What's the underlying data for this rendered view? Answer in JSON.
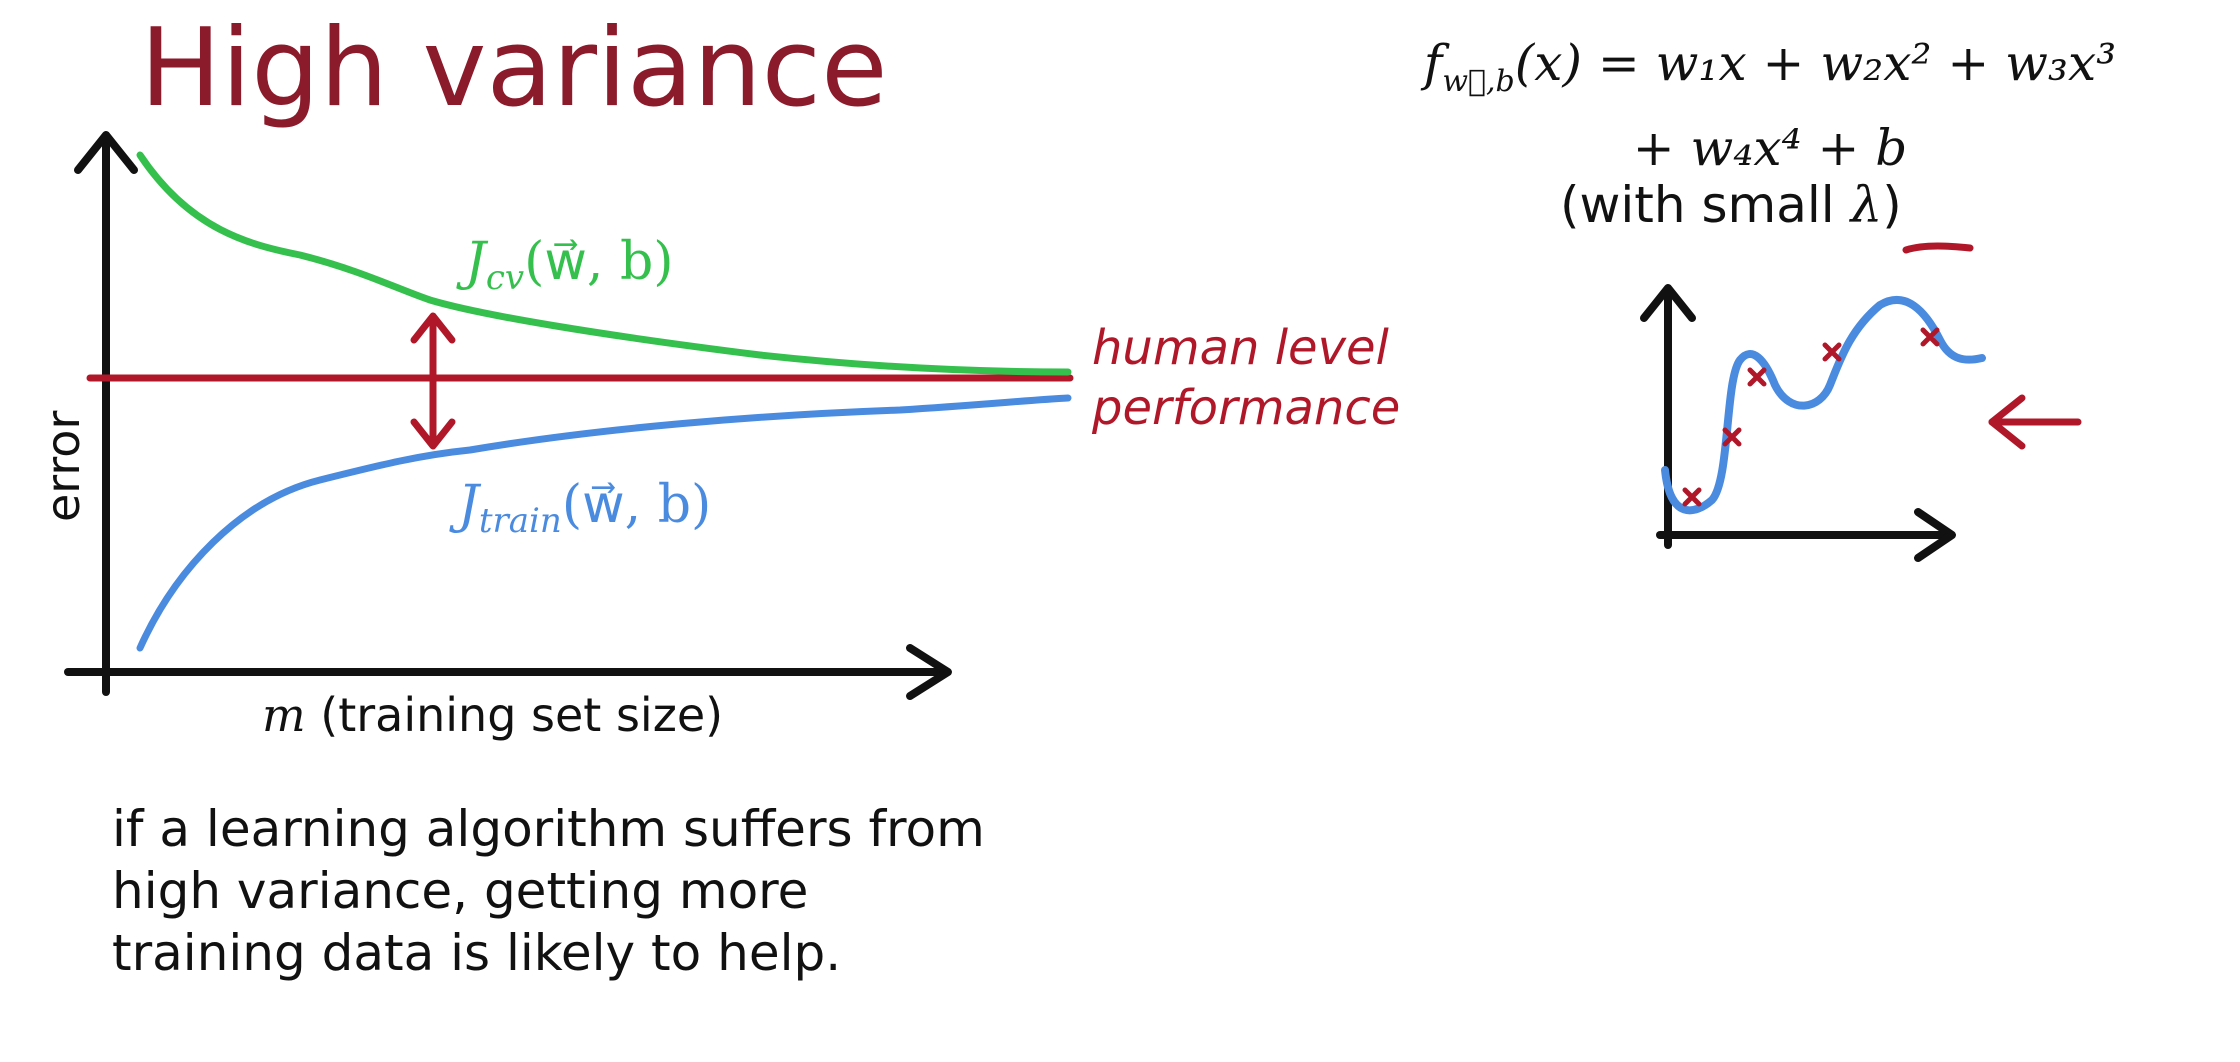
{
  "title": "High variance",
  "learning_curve": {
    "y_axis_label": "error",
    "x_axis_label_var": "m",
    "x_axis_label_text": " (training set size)",
    "cv_curve_label": {
      "prefix": "J",
      "sub": "cv",
      "args": "(w⃗, b)",
      "color": "#35c04d"
    },
    "train_curve_label": {
      "prefix": "J",
      "sub": "train",
      "args": "(w⃗, b)",
      "color": "#4a8be0"
    },
    "human_level_label_line1": "human level",
    "human_level_label_line2": "performance",
    "human_level_color": "#b0182a"
  },
  "model": {
    "formula_line1_f": "f",
    "formula_line1_sub": "w⃗,b",
    "formula_line1_rest": "(x) = w₁x + w₂x² + w₃x³",
    "formula_line2": "+ w₄x⁴ + b",
    "note_prefix": "(with small ",
    "note_lambda": "λ",
    "note_suffix": ")"
  },
  "caption": "if a learning algorithm suffers from high variance, getting more training data is likely to help.",
  "colors": {
    "title": "#8b1a2b",
    "cv": "#35c04d",
    "train": "#4a8be0",
    "human": "#b0182a",
    "axis": "#111111"
  }
}
